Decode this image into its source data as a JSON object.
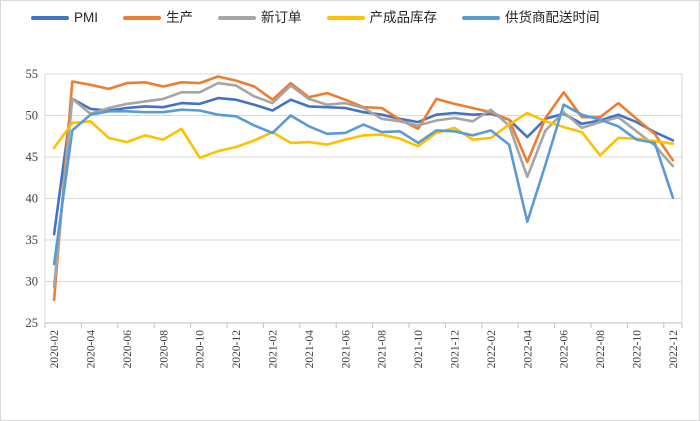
{
  "chart_data": {
    "type": "line",
    "title": "",
    "xlabel": "",
    "ylabel": "",
    "ylim": [
      25,
      55
    ],
    "y_ticks": [
      25,
      30,
      35,
      40,
      45,
      50,
      55
    ],
    "x_label_every": 2,
    "grid": "horizontal",
    "legend_position": "top",
    "categories": [
      "2020-02",
      "2020-03",
      "2020-04",
      "2020-05",
      "2020-06",
      "2020-07",
      "2020-08",
      "2020-09",
      "2020-10",
      "2020-11",
      "2020-12",
      "2021-01",
      "2021-02",
      "2021-03",
      "2021-04",
      "2021-05",
      "2021-06",
      "2021-07",
      "2021-08",
      "2021-09",
      "2021-10",
      "2021-11",
      "2021-12",
      "2022-01",
      "2022-02",
      "2022-03",
      "2022-04",
      "2022-05",
      "2022-06",
      "2022-07",
      "2022-08",
      "2022-09",
      "2022-10",
      "2022-11",
      "2022-12"
    ],
    "series": [
      {
        "name": "PMI",
        "color": "#4472C4",
        "values": [
          35.7,
          52.0,
          50.8,
          50.6,
          50.9,
          51.1,
          51.0,
          51.5,
          51.4,
          52.1,
          51.9,
          51.3,
          50.6,
          51.9,
          51.1,
          51.0,
          50.9,
          50.4,
          50.1,
          49.6,
          49.2,
          50.1,
          50.3,
          50.1,
          50.2,
          49.5,
          47.4,
          49.6,
          50.2,
          49.0,
          49.4,
          50.1,
          49.2,
          48.0,
          47.0
        ]
      },
      {
        "name": "生产",
        "color": "#ED7D31",
        "values": [
          27.8,
          54.1,
          53.7,
          53.2,
          53.9,
          54.0,
          53.5,
          54.0,
          53.9,
          54.7,
          54.2,
          53.5,
          51.9,
          53.9,
          52.2,
          52.7,
          51.9,
          51.0,
          50.9,
          49.5,
          48.4,
          52.0,
          51.4,
          50.9,
          50.4,
          49.5,
          44.4,
          49.7,
          52.8,
          49.8,
          49.8,
          51.5,
          49.6,
          47.8,
          44.6
        ]
      },
      {
        "name": "新订单",
        "color": "#A5A5A5",
        "values": [
          29.3,
          52.0,
          50.2,
          50.9,
          51.4,
          51.7,
          52.0,
          52.8,
          52.8,
          53.9,
          53.6,
          52.3,
          51.5,
          53.6,
          52.0,
          51.3,
          51.5,
          50.9,
          49.6,
          49.3,
          48.8,
          49.4,
          49.7,
          49.3,
          50.7,
          48.8,
          42.6,
          48.2,
          50.4,
          48.5,
          49.2,
          49.8,
          48.1,
          46.4,
          43.9
        ]
      },
      {
        "name": "产成品库存",
        "color": "#FFC000",
        "values": [
          46.1,
          49.1,
          49.3,
          47.3,
          46.8,
          47.6,
          47.1,
          48.4,
          44.9,
          45.7,
          46.2,
          47.0,
          48.0,
          46.7,
          46.8,
          46.5,
          47.1,
          47.6,
          47.7,
          47.2,
          46.3,
          47.9,
          48.5,
          47.1,
          47.3,
          48.9,
          50.3,
          49.3,
          48.6,
          48.0,
          45.2,
          47.3,
          47.2,
          46.9,
          46.6
        ]
      },
      {
        "name": "供货商配送时间",
        "color": "#5B9BD5",
        "values": [
          32.1,
          48.2,
          50.1,
          50.5,
          50.5,
          50.4,
          50.4,
          50.7,
          50.6,
          50.1,
          49.9,
          48.8,
          47.9,
          50.0,
          48.7,
          47.8,
          47.9,
          48.9,
          48.0,
          48.1,
          46.7,
          48.2,
          48.1,
          47.6,
          48.2,
          46.5,
          37.2,
          44.1,
          51.3,
          50.1,
          49.5,
          48.7,
          47.1,
          46.7,
          40.1
        ]
      }
    ],
    "colors": {
      "gridline": "#D9D9D9",
      "axis_line": "#BFBFBF",
      "tick_text": "#404040",
      "legend_text": "#262626",
      "background": "#FFFFFF"
    }
  }
}
